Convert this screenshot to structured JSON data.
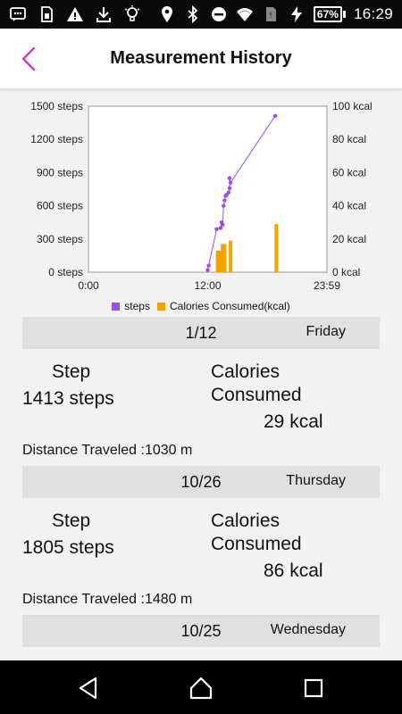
{
  "status_bar": {
    "left_icons": [
      "chat-icon",
      "sim-icon",
      "warning-icon",
      "download-icon",
      "bulb-icon"
    ],
    "right_icons": [
      "location-icon",
      "bluetooth-icon",
      "dnd-icon",
      "wifi-icon",
      "no-sim-icon",
      "charging-icon"
    ],
    "battery": "67%",
    "time": "16:29"
  },
  "app_bar": {
    "title": "Measurement History",
    "accent": "#e020c8"
  },
  "chart_data": {
    "type": "combo",
    "x_ticks": [
      "0:00",
      "12:00",
      "23:59"
    ],
    "x_range_hours": [
      0,
      24
    ],
    "left_axis": {
      "ticks": [
        "1500 steps",
        "1200 steps",
        "900 steps",
        "600 steps",
        "300 steps",
        "0 steps"
      ],
      "range": [
        0,
        1500
      ]
    },
    "right_axis": {
      "ticks": [
        "100 kcal",
        "80 kcal",
        "60 kcal",
        "40 kcal",
        "20 kcal",
        "0 kcal"
      ],
      "range": [
        0,
        100
      ]
    },
    "series": [
      {
        "name": "steps",
        "kind": "line",
        "color": "#9b4cf2",
        "points": [
          [
            12.0,
            20
          ],
          [
            12.1,
            60
          ],
          [
            12.9,
            390
          ],
          [
            13.3,
            400
          ],
          [
            13.4,
            450
          ],
          [
            13.5,
            430
          ],
          [
            13.6,
            600
          ],
          [
            13.7,
            650
          ],
          [
            13.8,
            690
          ],
          [
            13.9,
            700
          ],
          [
            14.1,
            720
          ],
          [
            14.2,
            760
          ],
          [
            14.2,
            850
          ],
          [
            14.3,
            810
          ],
          [
            18.8,
            1413
          ]
        ]
      },
      {
        "name": "Calories Consumed(kcal)",
        "kind": "bar",
        "color": "#f5a300",
        "bars": [
          [
            13.0,
            13
          ],
          [
            13.2,
            13
          ],
          [
            13.5,
            17
          ],
          [
            13.7,
            17
          ],
          [
            14.3,
            19
          ],
          [
            18.9,
            29
          ]
        ]
      }
    ],
    "legend": [
      "steps",
      "Calories Consumed(kcal)"
    ]
  },
  "days": [
    {
      "date": "1/12",
      "weekday": "Friday",
      "step_label": "Step",
      "steps": "1413 steps",
      "calories_label_1": "Calories",
      "calories_label_2": "Consumed",
      "calories": "29 kcal",
      "distance": "Distance Traveled :1030 m"
    },
    {
      "date": "10/26",
      "weekday": "Thursday",
      "step_label": "Step",
      "steps": "1805 steps",
      "calories_label_1": "Calories",
      "calories_label_2": "Consumed",
      "calories": "86 kcal",
      "distance": "Distance Traveled :1480 m"
    },
    {
      "date": "10/25",
      "weekday": "Wednesday"
    }
  ],
  "nav_bar": {
    "buttons": [
      "back-triangle-icon",
      "home-circle-icon",
      "recents-square-icon"
    ]
  }
}
